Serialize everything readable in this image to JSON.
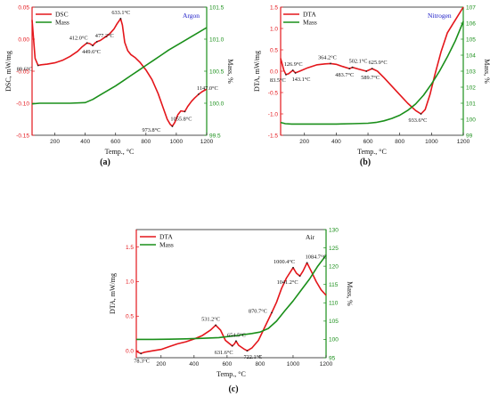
{
  "colors": {
    "thermal": "#e4161b",
    "mass": "#1a8f1a",
    "left_axis": "#e4161b",
    "right_axis": "#1a8f1a",
    "atmosphere": "#2020c8"
  },
  "chart_data": [
    {
      "type": "line",
      "panel_label": "(a)",
      "atmosphere": "Argon",
      "xlabel": "Temp., °C",
      "ylabel": "DSC, mW/mg",
      "y2label": "Mass, %",
      "xlim": [
        50,
        1200
      ],
      "ylim": [
        -0.15,
        0.05
      ],
      "y2lim": [
        99.5,
        101.5
      ],
      "xticks": [
        200,
        400,
        600,
        800,
        1000,
        1200
      ],
      "yticks": [
        -0.15,
        -0.1,
        -0.05,
        0.0,
        0.05
      ],
      "ytick_labels": [
        "-0.15",
        "-0.10",
        "-0.05",
        "0.00",
        "0.05"
      ],
      "y2ticks": [
        99.5,
        100.0,
        100.5,
        101.0,
        101.5
      ],
      "y2tick_labels": [
        "99.5",
        "100.0",
        "100.5",
        "101.0",
        "101.5"
      ],
      "legend_position": "top-left",
      "series": [
        {
          "name": "DSC",
          "axis": "left",
          "x": [
            50,
            60,
            70,
            89.6,
            110,
            150,
            200,
            250,
            300,
            350,
            380,
            412,
            430,
            449.6,
            465,
            477.2,
            500,
            530,
            560,
            590,
            610,
            633.1,
            645,
            660,
            680,
            700,
            730,
            760,
            800,
            840,
            880,
            910,
            940,
            960,
            973.8,
            990,
            1010,
            1030,
            1055.8,
            1075,
            1100,
            1120,
            1147,
            1170,
            1200
          ],
          "y": [
            0.03,
            0.0,
            -0.03,
            -0.041,
            -0.04,
            -0.039,
            -0.037,
            -0.033,
            -0.027,
            -0.019,
            -0.012,
            -0.006,
            -0.007,
            -0.01,
            -0.006,
            -0.004,
            -0.002,
            0.003,
            0.008,
            0.016,
            0.024,
            0.032,
            0.022,
            -0.005,
            -0.018,
            -0.024,
            -0.029,
            -0.036,
            -0.048,
            -0.063,
            -0.085,
            -0.105,
            -0.125,
            -0.133,
            -0.136,
            -0.13,
            -0.118,
            -0.112,
            -0.113,
            -0.105,
            -0.097,
            -0.092,
            -0.086,
            -0.082,
            -0.078
          ]
        },
        {
          "name": "Mass",
          "axis": "right",
          "x": [
            50,
            100,
            200,
            300,
            400,
            450,
            500,
            550,
            600,
            650,
            700,
            750,
            800,
            850,
            900,
            950,
            1000,
            1050,
            1100,
            1150,
            1200
          ],
          "y": [
            99.99,
            100.0,
            100.0,
            100.0,
            100.01,
            100.06,
            100.13,
            100.2,
            100.27,
            100.35,
            100.43,
            100.51,
            100.59,
            100.67,
            100.75,
            100.83,
            100.9,
            100.97,
            101.04,
            101.11,
            101.18
          ]
        }
      ],
      "annotations": [
        {
          "text": "89.6°C",
          "x": 89.6,
          "y": -0.041
        },
        {
          "text": "412.0°C",
          "x": 412,
          "y": -0.006
        },
        {
          "text": "449.6°C",
          "x": 449.6,
          "y": -0.01
        },
        {
          "text": "477.2°C",
          "x": 477.2,
          "y": -0.004
        },
        {
          "text": "633.1°C",
          "x": 633.1,
          "y": 0.032
        },
        {
          "text": "973.8°C",
          "x": 973.8,
          "y": -0.136
        },
        {
          "text": "1055.8°C",
          "x": 1055.8,
          "y": -0.113
        },
        {
          "text": "1147.0°C",
          "x": 1147,
          "y": -0.086
        }
      ]
    },
    {
      "type": "line",
      "panel_label": "(b)",
      "atmosphere": "Nitrogen",
      "xlabel": "Temp., °C",
      "ylabel": "DTA, mW/mg",
      "y2label": "Mass, %",
      "xlim": [
        50,
        1200
      ],
      "ylim": [
        -1.5,
        1.5
      ],
      "y2lim": [
        99,
        107
      ],
      "xticks": [
        200,
        400,
        600,
        800,
        1000,
        1200
      ],
      "yticks": [
        -1.5,
        -1.0,
        -0.5,
        0.0,
        0.5,
        1.0,
        1.5
      ],
      "ytick_labels": [
        "-1.5",
        "-1.0",
        "-0.5",
        "0.0",
        "0.5",
        "1.0",
        "1.5"
      ],
      "y2ticks": [
        99,
        100,
        101,
        102,
        103,
        104,
        105,
        106,
        107
      ],
      "y2tick_labels": [
        "99",
        "100",
        "101",
        "102",
        "103",
        "104",
        "105",
        "106",
        "107"
      ],
      "legend_position": "top-left",
      "series": [
        {
          "name": "DTA",
          "axis": "left",
          "x": [
            50,
            70,
            83.5,
            100,
            126.9,
            143.1,
            170,
            220,
            280,
            330,
            364.2,
            400,
            440,
            483.7,
            502.1,
            540,
            589.7,
            625.9,
            660,
            700,
            750,
            800,
            850,
            900,
            933.6,
            960,
            990,
            1020,
            1060,
            1100,
            1150,
            1200
          ],
          "y": [
            0.3,
            0.02,
            -0.08,
            -0.06,
            0.02,
            -0.04,
            0.0,
            0.08,
            0.15,
            0.17,
            0.18,
            0.16,
            0.11,
            0.06,
            0.09,
            0.05,
            0.0,
            0.06,
            0.0,
            -0.15,
            -0.35,
            -0.55,
            -0.75,
            -0.92,
            -1.0,
            -0.9,
            -0.55,
            -0.1,
            0.45,
            0.9,
            1.2,
            1.5
          ]
        },
        {
          "name": "Mass",
          "axis": "right",
          "x": [
            50,
            80,
            120,
            200,
            300,
            400,
            500,
            600,
            650,
            700,
            750,
            800,
            850,
            900,
            950,
            1000,
            1050,
            1100,
            1150,
            1200
          ],
          "y": [
            99.8,
            99.72,
            99.7,
            99.7,
            99.7,
            99.7,
            99.72,
            99.75,
            99.8,
            99.9,
            100.05,
            100.25,
            100.55,
            100.95,
            101.5,
            102.2,
            103.0,
            103.9,
            104.9,
            106.1
          ]
        }
      ],
      "annotations": [
        {
          "text": "83.5°C",
          "x": 83.5,
          "y": -0.08
        },
        {
          "text": "126.9°C",
          "x": 126.9,
          "y": 0.02
        },
        {
          "text": "143.1°C",
          "x": 143.1,
          "y": -0.04
        },
        {
          "text": "364.2°C",
          "x": 364.2,
          "y": 0.18
        },
        {
          "text": "483.7°C",
          "x": 483.7,
          "y": 0.06
        },
        {
          "text": "502.1°C",
          "x": 502.1,
          "y": 0.09
        },
        {
          "text": "589.7°C",
          "x": 589.7,
          "y": 0.0
        },
        {
          "text": "625.9°C",
          "x": 625.9,
          "y": 0.06
        },
        {
          "text": "933.6°C",
          "x": 933.6,
          "y": -1.0
        }
      ]
    },
    {
      "type": "line",
      "panel_label": "(c)",
      "atmosphere": "Air",
      "xlabel": "Temp., °C",
      "ylabel": "DTA, mW/mg",
      "y2label": "Mass, %",
      "xlim": [
        50,
        1200
      ],
      "ylim": [
        -0.1,
        1.75
      ],
      "y2lim": [
        95,
        130
      ],
      "xticks": [
        200,
        400,
        600,
        800,
        1000,
        1200
      ],
      "yticks": [
        0.0,
        0.5,
        1.0,
        1.5
      ],
      "ytick_labels": [
        "0.0",
        "0.5",
        "1.0",
        "1.5"
      ],
      "y2ticks": [
        95,
        100,
        105,
        110,
        115,
        120,
        125,
        130
      ],
      "y2tick_labels": [
        "95",
        "100",
        "105",
        "110",
        "115",
        "120",
        "125",
        "130"
      ],
      "legend_position": "top-left",
      "series": [
        {
          "name": "DTA",
          "axis": "left",
          "x": [
            50,
            60,
            78.3,
            100,
            150,
            200,
            250,
            300,
            350,
            400,
            450,
            500,
            531.2,
            560,
            590,
            631.6,
            645,
            654.5,
            670,
            700,
            722.1,
            750,
            790,
            830,
            870.7,
            900,
            930,
            960,
            1000.4,
            1020,
            1041.2,
            1060,
            1084.7,
            1110,
            1140,
            1170,
            1200
          ],
          "y": [
            0.0,
            -0.02,
            -0.04,
            -0.02,
            0.0,
            0.02,
            0.06,
            0.1,
            0.13,
            0.17,
            0.22,
            0.3,
            0.37,
            0.3,
            0.15,
            0.07,
            0.1,
            0.14,
            0.08,
            0.03,
            0.0,
            0.04,
            0.15,
            0.35,
            0.55,
            0.7,
            0.9,
            1.05,
            1.2,
            1.12,
            1.08,
            1.15,
            1.27,
            1.15,
            1.0,
            0.88,
            0.8
          ]
        },
        {
          "name": "Mass",
          "axis": "right",
          "x": [
            50,
            150,
            250,
            350,
            450,
            550,
            650,
            700,
            750,
            800,
            850,
            900,
            950,
            1000,
            1050,
            1100,
            1150,
            1200
          ],
          "y": [
            100.0,
            100.0,
            100.05,
            100.15,
            100.3,
            100.5,
            101.0,
            101.3,
            101.6,
            102.0,
            103.0,
            105.0,
            107.8,
            110.5,
            113.5,
            116.5,
            120.0,
            123.0
          ]
        }
      ],
      "annotations": [
        {
          "text": "78.3°C",
          "x": 78.3,
          "y": -0.04
        },
        {
          "text": "531.2°C",
          "x": 531.2,
          "y": 0.37
        },
        {
          "text": "631.6°C",
          "x": 631.6,
          "y": 0.07
        },
        {
          "text": "654.5°C",
          "x": 654.5,
          "y": 0.14
        },
        {
          "text": "722.1°C",
          "x": 722.1,
          "y": 0.0
        },
        {
          "text": "870.7°C",
          "x": 870.7,
          "y": 0.55
        },
        {
          "text": "1000.4°C",
          "x": 1000.4,
          "y": 1.2
        },
        {
          "text": "1041.2°C",
          "x": 1041.2,
          "y": 1.08
        },
        {
          "text": "1084.7°C",
          "x": 1084.7,
          "y": 1.27
        }
      ]
    }
  ]
}
